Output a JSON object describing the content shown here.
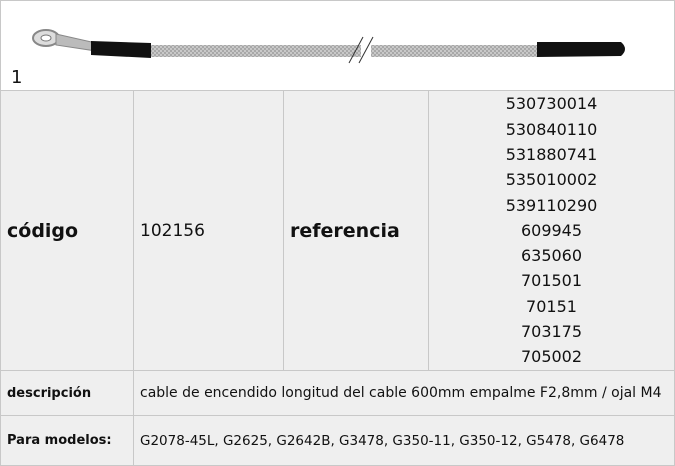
{
  "item_number": "1",
  "table": {
    "codigo_label": "código",
    "codigo": "102156",
    "referencia_label": "referencia",
    "referencias": [
      "530730014",
      "530840110",
      "531880741",
      "535010002",
      "539110290",
      "609945",
      "635060",
      "701501",
      "70151",
      "703175",
      "705002"
    ],
    "descripcion_label": "descripción",
    "descripcion": "cable de encendido  longitud del cable  600mm empalme F2,8mm / ojal M4",
    "modelos_label": "Para modelos:",
    "modelos": "G2078-45L, G2625, G2642B, G3478, G350-11, G350-12, G5478, G6478"
  }
}
